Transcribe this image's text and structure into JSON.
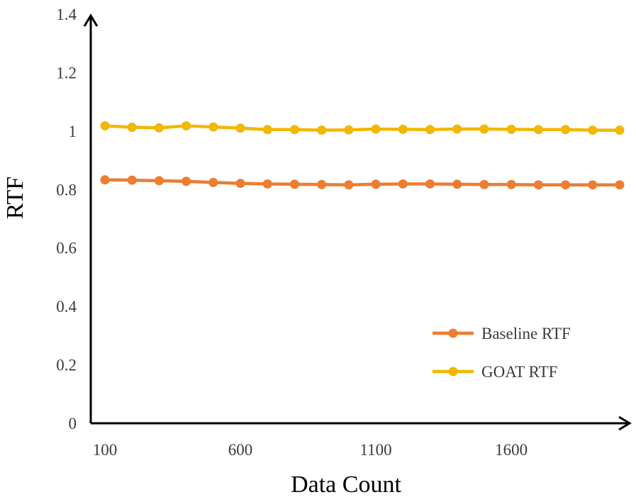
{
  "chart_data": {
    "type": "line",
    "title": "",
    "xlabel": "Data Count",
    "ylabel": "RTF",
    "xlim": [
      100,
      2000
    ],
    "ylim": [
      0,
      1.4
    ],
    "x_ticks": [
      100,
      600,
      1100,
      1600
    ],
    "y_ticks": [
      0,
      0.2,
      0.4,
      0.6,
      0.8,
      1,
      1.2,
      1.4
    ],
    "x_tick_labels": [
      "100",
      "600",
      "1100",
      "1600"
    ],
    "y_tick_labels": [
      "0",
      "0.2",
      "0.4",
      "0.6",
      "0.8",
      "1",
      "1.2",
      "1.4"
    ],
    "grid": false,
    "legend_position": "bottom-right",
    "x": [
      100,
      200,
      300,
      400,
      500,
      600,
      700,
      800,
      900,
      1000,
      1100,
      1200,
      1300,
      1400,
      1500,
      1600,
      1700,
      1800,
      1900,
      2000
    ],
    "series": [
      {
        "name": "Baseline RTF",
        "color": "#ED7D31",
        "values": [
          0.833,
          0.832,
          0.83,
          0.828,
          0.824,
          0.821,
          0.819,
          0.818,
          0.817,
          0.816,
          0.818,
          0.819,
          0.819,
          0.818,
          0.817,
          0.817,
          0.816,
          0.816,
          0.816,
          0.816
        ]
      },
      {
        "name": "GOAT RTF",
        "color": "#F2B700",
        "values": [
          1.018,
          1.013,
          1.011,
          1.018,
          1.014,
          1.01,
          1.005,
          1.005,
          1.003,
          1.004,
          1.007,
          1.006,
          1.005,
          1.007,
          1.007,
          1.006,
          1.005,
          1.005,
          1.003,
          1.003
        ]
      }
    ]
  }
}
